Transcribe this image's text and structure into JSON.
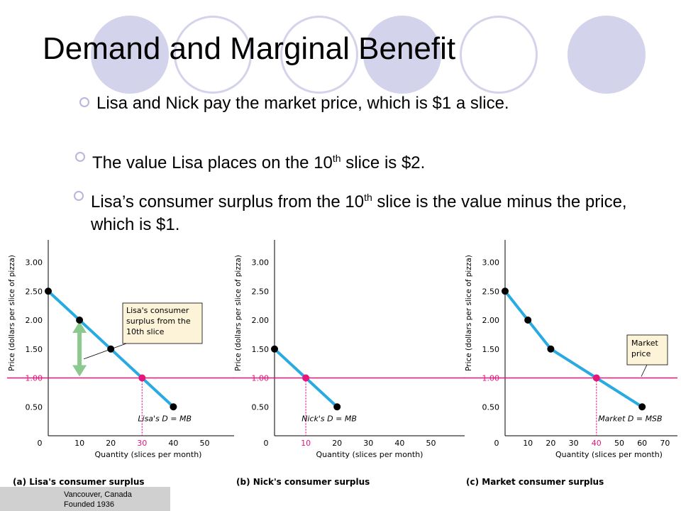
{
  "slide": {
    "title": "Demand and Marginal Benefit",
    "bullets": [
      {
        "text": "Lisa and Nick pay the market price, which is $1 a slice."
      },
      {
        "pre": "The value Lisa places on the 10",
        "sup": "th",
        "post": " slice is $2."
      },
      {
        "pre": "Lisa’s consumer surplus from the 10",
        "sup": "th",
        "post": " slice is the value minus the price, which is $1."
      }
    ]
  },
  "footer": {
    "line1": "Vancouver, Canada",
    "line2": "Founded 1936"
  },
  "colors": {
    "demand_line": "#29abe2",
    "price_line": "#e6167b",
    "arrow": "#8cc98f",
    "callout_fill": "#fdf3d8",
    "deco_circle": "#d3d3ec"
  },
  "chart_data": [
    {
      "type": "line",
      "caption": "(a) Lisa's consumer surplus",
      "ylabel": "Price (dollars per slice of pizza)",
      "xlabel": "Quantity (slices per month)",
      "x_ticks": [
        "0",
        "10",
        "20",
        "30",
        "40",
        "50"
      ],
      "y_ticks": [
        "0.50",
        "1.00",
        "1.50",
        "2.00",
        "2.50",
        "3.00"
      ],
      "xlim": [
        0,
        55
      ],
      "ylim": [
        0,
        3.5
      ],
      "price": 1.0,
      "price_label": "1.00",
      "quantity_at_price": 30,
      "quantity_label": "30",
      "demand": {
        "name": "Lisa's D = MB",
        "x": [
          0,
          10,
          20,
          30,
          40
        ],
        "y": [
          2.5,
          2.0,
          1.5,
          1.0,
          0.5
        ]
      },
      "callout": [
        "Lisa's consumer",
        "surplus from the",
        "10th slice"
      ],
      "surplus_arrow": {
        "x": 10,
        "y_from": 1.0,
        "y_to": 2.0
      }
    },
    {
      "type": "line",
      "caption": "(b) Nick's consumer surplus",
      "ylabel": "Price (dollars per slice of pizza)",
      "xlabel": "Quantity (slices per month)",
      "x_ticks": [
        "0",
        "10",
        "20",
        "30",
        "40",
        "50"
      ],
      "y_ticks": [
        "0.50",
        "1.00",
        "1.50",
        "2.00",
        "2.50",
        "3.00"
      ],
      "xlim": [
        0,
        55
      ],
      "ylim": [
        0,
        3.5
      ],
      "price": 1.0,
      "price_label": "1.00",
      "quantity_at_price": 10,
      "quantity_label": "10",
      "demand": {
        "name": "Nick's D = MB",
        "x": [
          0,
          10,
          20
        ],
        "y": [
          1.5,
          1.0,
          0.5
        ]
      }
    },
    {
      "type": "line",
      "caption": "(c) Market consumer surplus",
      "ylabel": "Price (dollars per slice of pizza)",
      "xlabel": "Quantity (slices per month)",
      "x_ticks": [
        "0",
        "10",
        "20",
        "30",
        "40",
        "50",
        "60",
        "70"
      ],
      "y_ticks": [
        "0.50",
        "1.00",
        "1.50",
        "2.00",
        "2.50",
        "3.00"
      ],
      "xlim": [
        0,
        75
      ],
      "ylim": [
        0,
        3.5
      ],
      "price": 1.0,
      "price_label": "1.00",
      "quantity_at_price": 40,
      "quantity_label": "40",
      "demand": {
        "name": "Market D = MSB",
        "x": [
          0,
          10,
          20,
          40,
          60
        ],
        "y": [
          2.5,
          2.0,
          1.5,
          1.0,
          0.5
        ]
      },
      "callout": [
        "Market",
        "price"
      ]
    }
  ]
}
